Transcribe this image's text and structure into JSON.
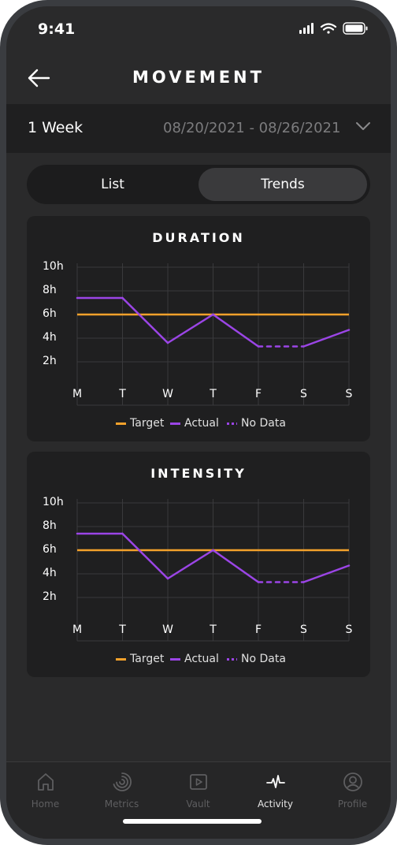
{
  "status_bar": {
    "time": "9:41"
  },
  "header": {
    "title": "MOVEMENT"
  },
  "range": {
    "period": "1 Week",
    "dates": "08/20/2021 - 08/26/2021"
  },
  "toggle": {
    "list_label": "List",
    "trends_label": "Trends",
    "selected": "Trends"
  },
  "colors": {
    "target": "#f3a12b",
    "actual": "#9b45e6",
    "grid": "#3a3a3c",
    "background": "#2a2a2b",
    "card": "#1f1f20"
  },
  "chart_data": [
    {
      "type": "line",
      "title": "DURATION",
      "categories": [
        "M",
        "T",
        "W",
        "T",
        "F",
        "S",
        "S"
      ],
      "yticks": [
        "10h",
        "8h",
        "6h",
        "4h",
        "2h"
      ],
      "ylim": [
        0,
        10
      ],
      "series": [
        {
          "name": "Target",
          "values": [
            6,
            6,
            6,
            6,
            6,
            6,
            6
          ]
        },
        {
          "name": "Actual",
          "values": [
            7.4,
            7.4,
            3.6,
            6,
            3.3,
            3.3,
            4.7
          ],
          "no_data_segments": [
            [
              4,
              5
            ]
          ]
        }
      ],
      "legend": [
        "Target",
        "Actual",
        "No Data"
      ],
      "grid": true,
      "legend_position": "bottom"
    },
    {
      "type": "line",
      "title": "INTENSITY",
      "categories": [
        "M",
        "T",
        "W",
        "T",
        "F",
        "S",
        "S"
      ],
      "yticks": [
        "10h",
        "8h",
        "6h",
        "4h",
        "2h"
      ],
      "ylim": [
        0,
        10
      ],
      "series": [
        {
          "name": "Target",
          "values": [
            6,
            6,
            6,
            6,
            6,
            6,
            6
          ]
        },
        {
          "name": "Actual",
          "values": [
            7.4,
            7.4,
            3.6,
            6,
            3.3,
            3.3,
            4.7
          ],
          "no_data_segments": [
            [
              4,
              5
            ]
          ]
        }
      ],
      "legend": [
        "Target",
        "Actual",
        "No Data"
      ],
      "grid": true,
      "legend_position": "bottom"
    }
  ],
  "tab_bar": {
    "items": [
      {
        "label": "Home",
        "icon": "home-icon"
      },
      {
        "label": "Metrics",
        "icon": "metrics-icon"
      },
      {
        "label": "Vault",
        "icon": "vault-icon"
      },
      {
        "label": "Activity",
        "icon": "activity-icon",
        "active": true
      },
      {
        "label": "Profile",
        "icon": "profile-icon"
      }
    ]
  }
}
